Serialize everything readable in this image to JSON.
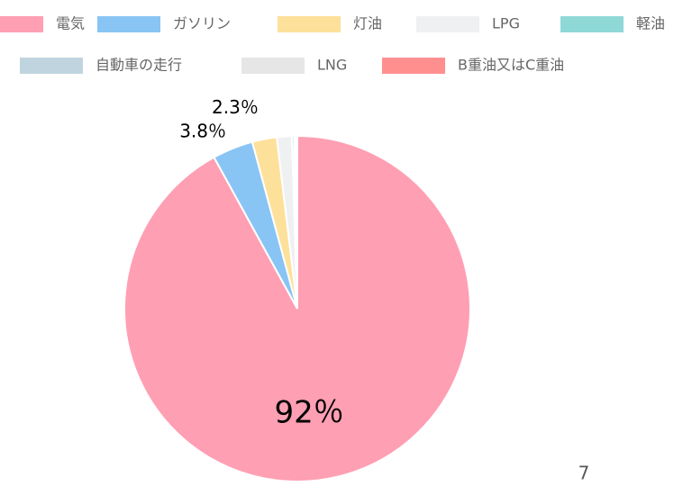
{
  "chart_data": {
    "type": "pie",
    "categories": [
      "電気",
      "ガソリン",
      "灯油",
      "LPG",
      "軽油",
      "自動車の走行",
      "LNG",
      "B重油又はC重油"
    ],
    "values": [
      92,
      3.8,
      2.3,
      1.4,
      0.2,
      0.1,
      0.1,
      0.1
    ],
    "value_labels": [
      "92％",
      "3.8％",
      "2.3％",
      null,
      null,
      null,
      null,
      null
    ],
    "colors": [
      "#ff9fb3",
      "#88c5f4",
      "#fde09a",
      "#eff0f2",
      "#8fd8d8",
      "#c0d4e0",
      "#e6e6e6",
      "#ff8f8f"
    ],
    "legend": "top"
  },
  "page_number": "7"
}
